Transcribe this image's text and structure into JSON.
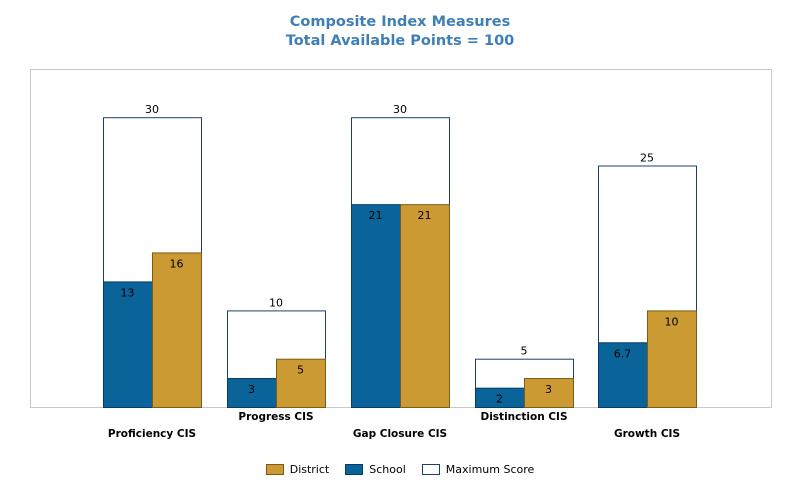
{
  "chart_data": {
    "type": "bar",
    "title": "Composite Index Measures",
    "subtitle": "Total Available Points = 100",
    "categories": [
      "Proficiency CIS",
      "Progress CIS",
      "Gap Closure CIS",
      "Distinction CIS",
      "Growth CIS"
    ],
    "series": [
      {
        "name": "School",
        "values": [
          13,
          3,
          21,
          2,
          6.7
        ],
        "labels": [
          "13",
          "3",
          "21",
          "2",
          "6.7"
        ],
        "color": "#0a6399"
      },
      {
        "name": "District",
        "values": [
          16,
          5,
          21,
          3,
          10
        ],
        "labels": [
          "16",
          "5",
          "21",
          "3",
          "10"
        ],
        "color": "#cb9a33"
      },
      {
        "name": "Maximum Score",
        "values": [
          30,
          10,
          30,
          5,
          25
        ],
        "labels": [
          "30",
          "10",
          "30",
          "5",
          "25"
        ],
        "color": "#ffffff"
      }
    ],
    "ylim": [
      0,
      35
    ],
    "grid": false,
    "legend": {
      "position": "bottom",
      "items": [
        {
          "label": "District",
          "color": "#cb9a33"
        },
        {
          "label": "School",
          "color": "#0a6399"
        },
        {
          "label": "Maximum Score",
          "color": "#ffffff"
        }
      ]
    }
  }
}
